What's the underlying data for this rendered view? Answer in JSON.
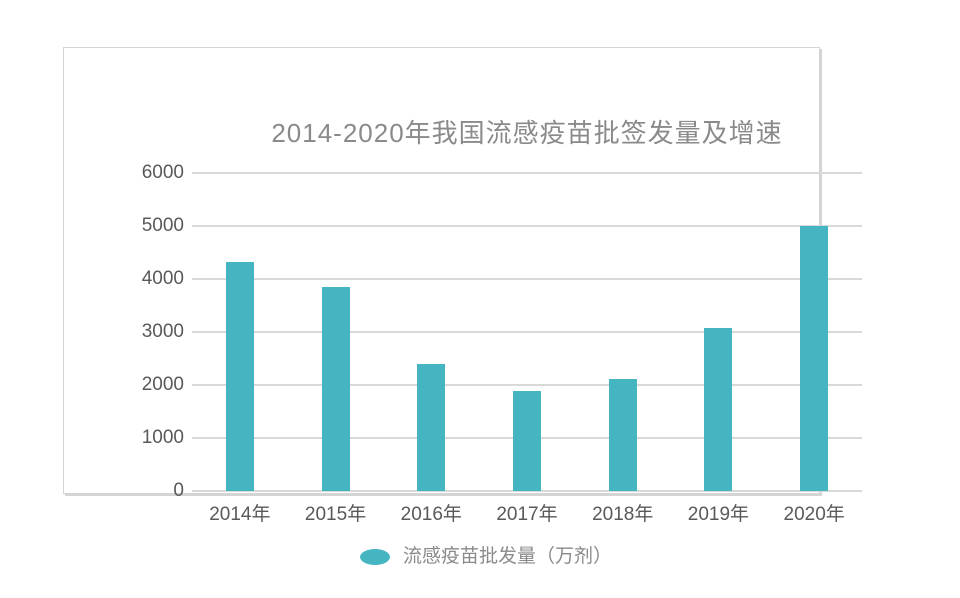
{
  "chart_data": {
    "type": "bar",
    "title": "2014-2020年我国流感疫苗批签发量及增速",
    "categories": [
      "2014年",
      "2015年",
      "2016年",
      "2017年",
      "2018年",
      "2019年",
      "2020年"
    ],
    "values": [
      4330,
      3840,
      2400,
      1890,
      2110,
      3080,
      5000
    ],
    "series_name": "流感疫苗批发量（万剂）",
    "xlabel": "",
    "ylabel": "",
    "ylim": [
      0,
      6000
    ],
    "yticks": [
      0,
      1000,
      2000,
      3000,
      4000,
      5000,
      6000
    ],
    "grid": true,
    "legend_position": "bottom"
  },
  "legend": {
    "label": "流感疫苗批发量（万剂）"
  },
  "colors": {
    "bar": "#46b5c2",
    "grid": "#d9d9d9",
    "axis_text": "#595959",
    "title_text": "#8a8a8a",
    "legend_text": "#8a8a8a",
    "panel_border": "#d4d4d4",
    "background": "#ffffff"
  }
}
